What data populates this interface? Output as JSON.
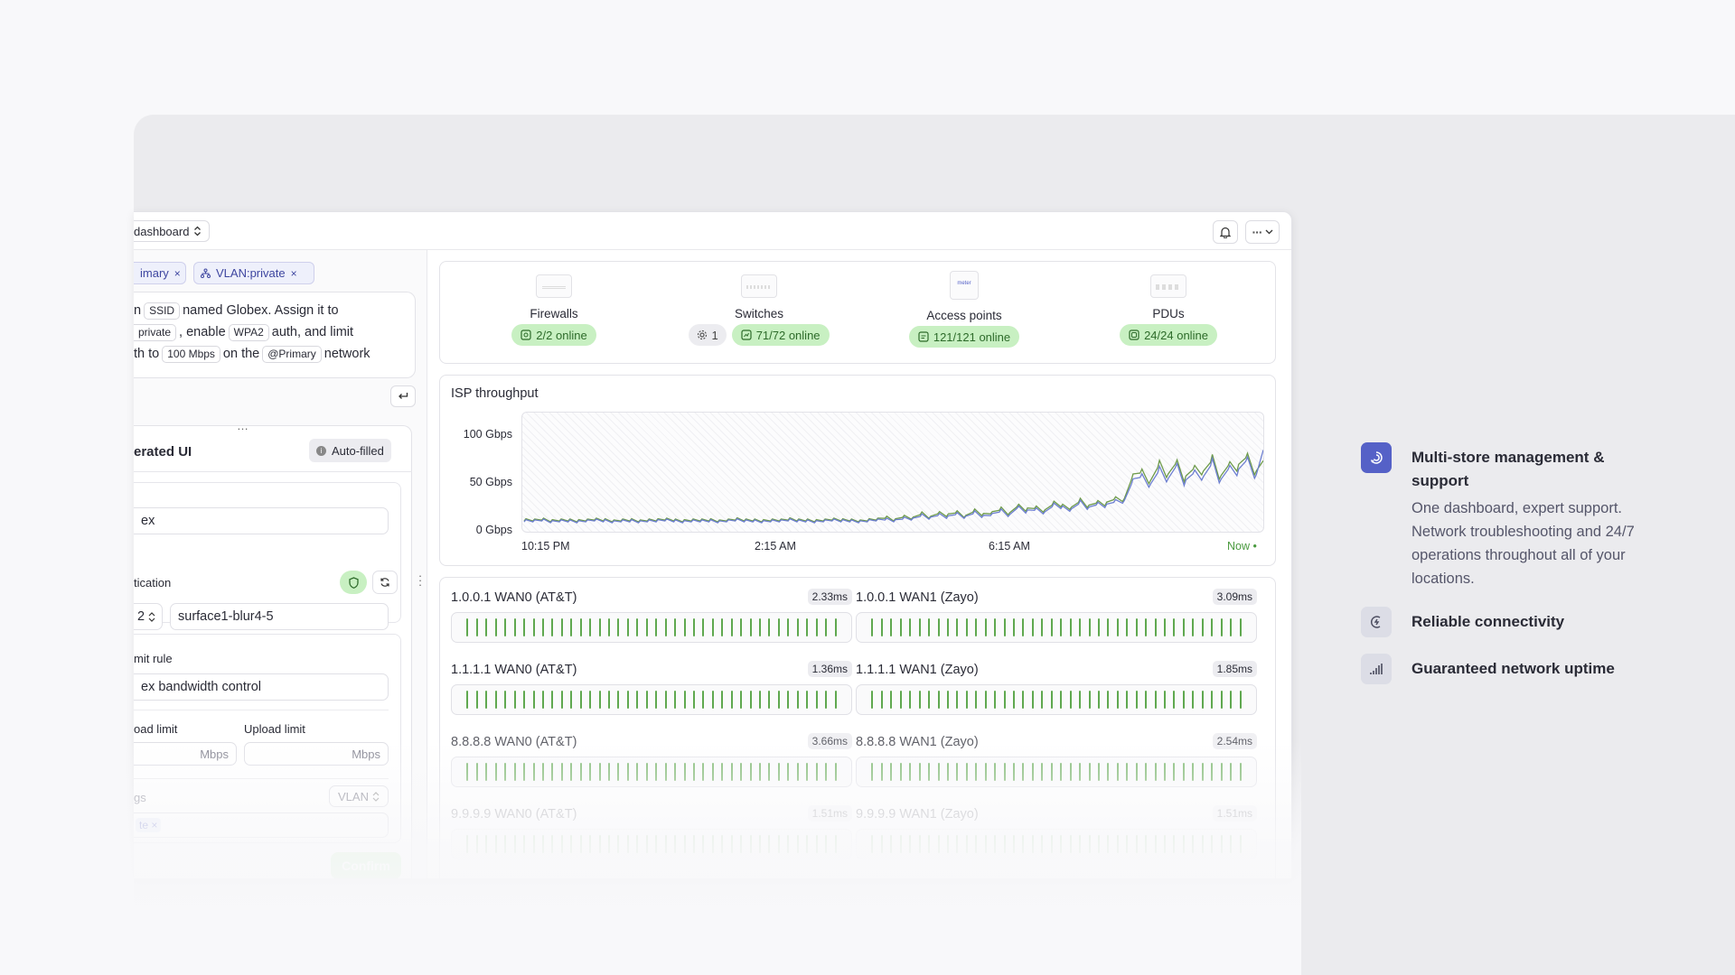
{
  "topbar": {
    "dashboard_label": "dashboard",
    "bell_icon": "bell-icon",
    "more_icon": "more-icon"
  },
  "filters": [
    {
      "label": "imary"
    },
    {
      "label": "VLAN:private"
    }
  ],
  "prompt": {
    "line1_a": "n",
    "line1_tag": "SSID",
    "line1_b": "named Globex. Assign it to",
    "line2_tag": "private",
    "line2_a": ", enable",
    "line2_tag2": "WPA2",
    "line2_b": "auth, and limit",
    "line3_a": "th to",
    "line3_tag": "100 Mbps",
    "line3_b": "on the",
    "line3_tag2": "@Primary",
    "line3_c": "network"
  },
  "panel": {
    "more": "…",
    "title": "erated UI",
    "autofill": "Auto-filled",
    "name_value": "ex",
    "auth_label": "tication",
    "auth_select": "2",
    "auth_value": "surface1-blur4-5",
    "rule_label": "mit rule",
    "rule_value": "ex bandwidth control",
    "download_label": "oad limit",
    "upload_label": "Upload limit",
    "unit1": "Mbps",
    "unit2": "Mbps",
    "tags_label": "gs",
    "vlan_select": "VLAN",
    "chip": "te",
    "confirm": "Confirm"
  },
  "devices": [
    {
      "name": "Firewalls",
      "status": "2/2 online"
    },
    {
      "name": "Switches",
      "status": "71/72 online",
      "alert": "1"
    },
    {
      "name": "Access points",
      "status": "121/121 online",
      "brand": "meter"
    },
    {
      "name": "PDUs",
      "status": "24/24 online"
    }
  ],
  "chart_data": {
    "type": "line",
    "title": "ISP throughput",
    "y_ticks": [
      "100 Gbps",
      "50 Gbps",
      "0 Gbps"
    ],
    "x_ticks": [
      "10:15 PM",
      "2:15 AM",
      "6:15 AM"
    ],
    "now_label": "Now •",
    "ylim": [
      0,
      120
    ],
    "series": [
      {
        "color": "#6e9b4b",
        "values": [
          6,
          6,
          7,
          5,
          6,
          6,
          5,
          6,
          7,
          6,
          5,
          6,
          6,
          5,
          6,
          6,
          7,
          6,
          5,
          6,
          6,
          6,
          5,
          6,
          7,
          6,
          6,
          5,
          6,
          6,
          7,
          6,
          6,
          5,
          6,
          7,
          6,
          6,
          5,
          6,
          7,
          9,
          6,
          10,
          8,
          13,
          9,
          14,
          11,
          15,
          10,
          16,
          12,
          14,
          18,
          13,
          22,
          17,
          20,
          16,
          24,
          22,
          19,
          27,
          21,
          26,
          23,
          30,
          28,
          52,
          60,
          48,
          66,
          55,
          70,
          50,
          64,
          58,
          72,
          53,
          68,
          62,
          77,
          58,
          74
        ]
      },
      {
        "color": "#6d7fd1",
        "values": [
          5,
          5,
          6,
          4,
          5,
          5,
          4,
          5,
          6,
          5,
          4,
          5,
          5,
          4,
          5,
          5,
          6,
          5,
          4,
          5,
          5,
          5,
          4,
          5,
          6,
          5,
          5,
          4,
          5,
          5,
          6,
          5,
          5,
          4,
          5,
          6,
          5,
          5,
          4,
          5,
          6,
          7,
          5,
          8,
          7,
          11,
          8,
          12,
          9,
          13,
          9,
          14,
          10,
          12,
          16,
          11,
          20,
          15,
          18,
          14,
          22,
          20,
          17,
          25,
          19,
          24,
          21,
          27,
          26,
          47,
          55,
          44,
          60,
          50,
          66,
          46,
          59,
          52,
          68,
          49,
          64,
          57,
          73,
          54,
          86
        ]
      }
    ]
  },
  "latency": [
    {
      "name": "1.0.0.1 WAN0 (AT&T)",
      "ms": "2.33ms"
    },
    {
      "name": "1.0.0.1 WAN1 (Zayo)",
      "ms": "3.09ms"
    },
    {
      "name": "1.1.1.1 WAN0 (AT&T)",
      "ms": "1.36ms"
    },
    {
      "name": "1.1.1.1 WAN1 (Zayo)",
      "ms": "1.85ms"
    },
    {
      "name": "8.8.8.8 WAN0 (AT&T)",
      "ms": "3.66ms"
    },
    {
      "name": "8.8.8.8 WAN1 (Zayo)",
      "ms": "2.54ms"
    },
    {
      "name": "9.9.9.9 WAN0 (AT&T)",
      "ms": "1.51ms"
    },
    {
      "name": "9.9.9.9 WAN1 (Zayo)",
      "ms": "1.51ms"
    }
  ],
  "features": [
    {
      "title": "Multi-store management & support",
      "desc": "One dashboard, expert support. Network troubleshooting and 24/7 operations throughout all of your locations.",
      "icon": "store-support-icon"
    },
    {
      "title": "Reliable connectivity",
      "icon": "connectivity-icon"
    },
    {
      "title": "Guaranteed network uptime",
      "icon": "signal-bars-icon"
    }
  ],
  "colors": {
    "accent": "#5561c7",
    "online": "#c8f0c2",
    "online_text": "#2d6b2a"
  }
}
